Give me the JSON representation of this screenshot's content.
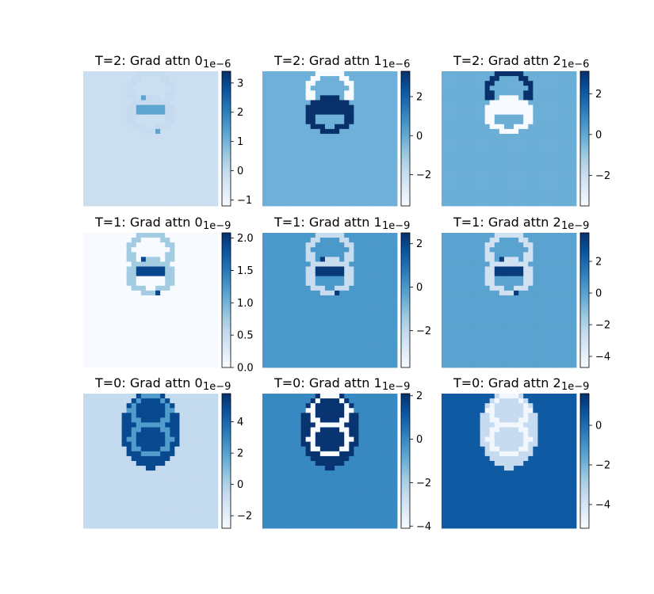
{
  "figure": {
    "background": "#ffffff",
    "colormap": "Blues",
    "grid": false
  },
  "chart_data": [
    {
      "type": "heatmap",
      "title": "T=2: Grad attn 0",
      "offset_label": "1e−6",
      "clim": [
        -1.2,
        3.4
      ],
      "background": -0.2,
      "pattern": "rings",
      "ring": -0.05,
      "dots": 1.3,
      "colorbar_ticks": [
        3,
        2,
        1,
        0,
        -1
      ],
      "colorbar_tick_labels": [
        "3",
        "2",
        "1",
        "0",
        "−1"
      ]
    },
    {
      "type": "heatmap",
      "title": "T=2: Grad attn 1",
      "offset_label": "1e−6",
      "clim": [
        -3.6,
        3.3
      ],
      "background": -0.2,
      "pattern": "split",
      "top_ring": -3.6,
      "bottom_ring": 3.3,
      "colorbar_ticks": [
        2,
        0,
        -2
      ],
      "colorbar_tick_labels": [
        "2",
        "0",
        "−2"
      ]
    },
    {
      "type": "heatmap",
      "title": "T=2: Grad attn 2",
      "offset_label": "1e−6",
      "clim": [
        -3.5,
        3.1
      ],
      "background": -0.2,
      "pattern": "split",
      "top_ring": 3.1,
      "bottom_ring": -3.5,
      "colorbar_ticks": [
        2,
        0,
        -2
      ],
      "colorbar_tick_labels": [
        "2",
        "0",
        "−2"
      ]
    },
    {
      "type": "heatmap",
      "title": "T=1: Grad attn 0",
      "offset_label": "1e−9",
      "clim": [
        0.0,
        2.08
      ],
      "background": 0.0,
      "pattern": "rings",
      "ring": 0.75,
      "dots": 1.9,
      "colorbar_ticks": [
        2.0,
        1.5,
        1.0,
        0.5,
        0.0
      ],
      "colorbar_tick_labels": [
        "2.0",
        "1.5",
        "1.0",
        "0.5",
        "0.0"
      ]
    },
    {
      "type": "heatmap",
      "title": "T=1: Grad attn 1",
      "offset_label": "1e−9",
      "clim": [
        -3.7,
        2.5
      ],
      "background": 0.0,
      "pattern": "rings",
      "ring": -2.2,
      "dots": 2.3,
      "colorbar_ticks": [
        2,
        0,
        -2
      ],
      "colorbar_tick_labels": [
        "2",
        "0",
        "−2"
      ]
    },
    {
      "type": "heatmap",
      "title": "T=1: Grad attn 2",
      "offset_label": "1e−9",
      "clim": [
        -4.7,
        3.8
      ],
      "background": 0.0,
      "pattern": "rings",
      "ring": -3.0,
      "dots": 3.4,
      "colorbar_ticks": [
        2,
        0,
        -2,
        -4
      ],
      "colorbar_tick_labels": [
        "2",
        "0",
        "−2",
        "−4"
      ]
    },
    {
      "type": "heatmap",
      "title": "T=0: Grad attn 0",
      "offset_label": "1e−9",
      "clim": [
        -2.8,
        5.8
      ],
      "background": -0.6,
      "pattern": "blob",
      "blob": 5.0,
      "ring": 2.2,
      "colorbar_ticks": [
        4,
        2,
        0,
        -2
      ],
      "colorbar_tick_labels": [
        "4",
        "2",
        "0",
        "−2"
      ]
    },
    {
      "type": "heatmap",
      "title": "T=0: Grad attn 1",
      "offset_label": "1e−9",
      "clim": [
        -4.1,
        2.1
      ],
      "background": 0.0,
      "pattern": "blob",
      "blob": 2.0,
      "ring": -4.1,
      "colorbar_ticks": [
        2,
        0,
        -2,
        -4
      ],
      "colorbar_tick_labels": [
        "2",
        "0",
        "−2",
        "−4"
      ]
    },
    {
      "type": "heatmap",
      "title": "T=0: Grad attn 2",
      "offset_label": "1e−9",
      "clim": [
        -5.2,
        1.6
      ],
      "background": 0.5,
      "pattern": "blob",
      "blob": -3.5,
      "ring": -5.0,
      "colorbar_ticks": [
        0,
        -2,
        -4
      ],
      "colorbar_tick_labels": [
        "0",
        "−2",
        "−4"
      ]
    }
  ]
}
